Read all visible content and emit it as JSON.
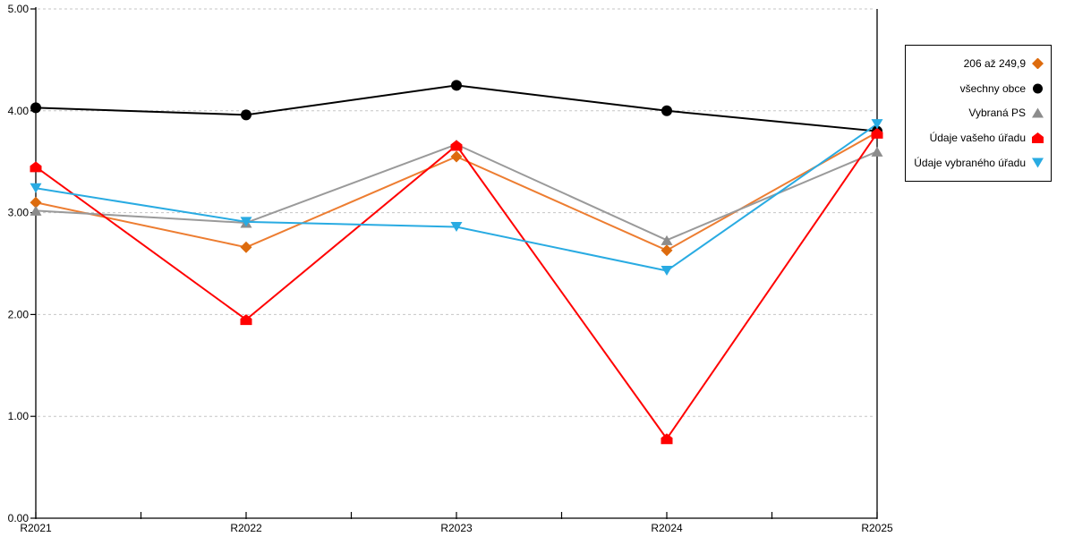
{
  "chart_data": {
    "type": "line",
    "title": "",
    "xlabel": "",
    "ylabel": "",
    "categories": [
      "R2021",
      "R2022",
      "R2023",
      "R2024",
      "R2025"
    ],
    "series": [
      {
        "name": "206 až 249,9",
        "marker": "diamond",
        "line_color": "#ED7D31",
        "marker_color": "#DD6B0D",
        "values": [
          3.1,
          2.66,
          3.55,
          2.63,
          3.79
        ]
      },
      {
        "name": "všechny obce",
        "marker": "circle",
        "line_color": "#000000",
        "marker_color": "#000000",
        "values": [
          4.03,
          3.96,
          4.25,
          4.0,
          3.8
        ]
      },
      {
        "name": "Vybraná PS",
        "marker": "triangle-up",
        "line_color": "#9A9A9A",
        "marker_color": "#8C8C8C",
        "values": [
          3.02,
          2.9,
          3.67,
          2.73,
          3.6
        ]
      },
      {
        "name": "Údaje vašeho úřadu",
        "marker": "pentagon",
        "line_color": "#FF0000",
        "marker_color": "#FF0000",
        "values": [
          3.45,
          1.95,
          3.66,
          0.78,
          3.78
        ]
      },
      {
        "name": "Údaje vybraného úřadu",
        "marker": "triangle-down",
        "line_color": "#29ABE2",
        "marker_color": "#29ABE2",
        "values": [
          3.24,
          2.91,
          2.86,
          2.43,
          3.87
        ]
      }
    ],
    "ylim": [
      0,
      5
    ],
    "ytick_labels": [
      "0.00",
      "1.00",
      "2.00",
      "3.00",
      "4.00",
      "5.00"
    ],
    "ytick_values": [
      0,
      1,
      2,
      3,
      4,
      5
    ],
    "grid": true,
    "gridline_values": [
      1,
      2,
      3,
      4,
      5
    ],
    "legend_position": "right-outside",
    "colors": {
      "axis": "#000000",
      "gridline": "#C6C6C6",
      "tick_label": "#000000",
      "background": "#FFFFFF"
    }
  }
}
